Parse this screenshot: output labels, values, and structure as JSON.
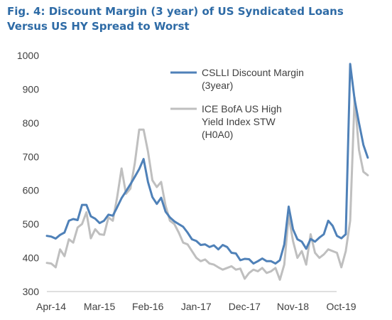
{
  "title": "Fig. 4: Discount Margin (3 year) of US Syndicated Loans Versus US HY Spread to Worst",
  "chart_data": {
    "type": "line",
    "ylim": [
      300,
      1000
    ],
    "y_ticks": [
      300,
      400,
      500,
      600,
      700,
      800,
      900,
      1000
    ],
    "x_tick_labels": [
      "Apr-14",
      "Mar-15",
      "Feb-16",
      "Jan-17",
      "Dec-17",
      "Nov-18",
      "Oct-19"
    ],
    "x_tick_index": [
      0,
      11,
      22,
      33,
      44,
      55,
      66
    ],
    "grid": false,
    "legend_placement": "upper-right",
    "series": [
      {
        "name": "CSLLI Discount Margin (3year)",
        "legend_lines": [
          "CSLLI Discount Margin",
          "(3year)"
        ],
        "color": "#4f81b8",
        "values": [
          465,
          463,
          457,
          468,
          475,
          510,
          515,
          512,
          557,
          557,
          523,
          516,
          503,
          510,
          528,
          525,
          550,
          577,
          597,
          618,
          640,
          663,
          693,
          625,
          580,
          560,
          578,
          537,
          520,
          508,
          500,
          492,
          475,
          455,
          450,
          438,
          440,
          432,
          437,
          425,
          438,
          432,
          415,
          413,
          393,
          397,
          396,
          383,
          390,
          398,
          390,
          390,
          383,
          393,
          440,
          552,
          485,
          455,
          448,
          427,
          456,
          448,
          460,
          470,
          510,
          495,
          465,
          458,
          470,
          975,
          870,
          800,
          735,
          697
        ]
      },
      {
        "name": "ICE BofA US High Yield Index STW (H0A0)",
        "legend_lines": [
          "ICE BofA US High",
          "Yield Index STW",
          "(H0A0)"
        ],
        "color": "#bfbfbf",
        "values": [
          385,
          383,
          372,
          425,
          405,
          455,
          445,
          490,
          500,
          535,
          458,
          485,
          470,
          468,
          520,
          510,
          580,
          665,
          590,
          605,
          680,
          780,
          780,
          715,
          630,
          610,
          625,
          555,
          510,
          500,
          475,
          445,
          440,
          420,
          400,
          390,
          395,
          383,
          380,
          372,
          365,
          370,
          375,
          365,
          368,
          338,
          355,
          365,
          360,
          370,
          355,
          360,
          370,
          335,
          380,
          525,
          450,
          400,
          420,
          380,
          470,
          415,
          400,
          410,
          425,
          420,
          415,
          372,
          420,
          510,
          875,
          720,
          655,
          645
        ]
      }
    ]
  }
}
